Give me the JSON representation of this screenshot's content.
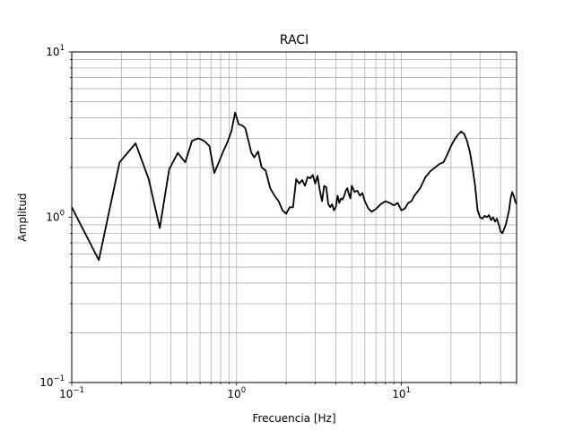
{
  "chart_data": {
    "type": "line",
    "title": "RACI",
    "xlabel": "Frecuencia [Hz]",
    "ylabel": "Amplitud",
    "xscale": "log",
    "yscale": "log",
    "xlim": [
      0.1,
      50
    ],
    "ylim": [
      0.1,
      10
    ],
    "grid": "major+minor",
    "line_color": "#000000",
    "grid_color": "#b0b0b0",
    "x_ticks": [
      {
        "base": "10",
        "exp": "−1",
        "value": 0.1
      },
      {
        "base": "10",
        "exp": "0",
        "value": 1
      },
      {
        "base": "10",
        "exp": "1",
        "value": 10
      }
    ],
    "y_ticks": [
      {
        "base": "10",
        "exp": "−1",
        "value": 0.1
      },
      {
        "base": "10",
        "exp": "0",
        "value": 1
      },
      {
        "base": "10",
        "exp": "1",
        "value": 10
      }
    ],
    "series": [
      {
        "x": [
          0.1,
          0.146,
          0.195,
          0.244,
          0.293,
          0.342,
          0.39,
          0.44,
          0.488,
          0.537,
          0.586,
          0.635,
          0.684,
          0.733,
          0.78,
          0.83,
          0.88,
          0.93,
          0.98,
          1.03,
          1.08,
          1.13,
          1.18,
          1.23,
          1.28,
          1.35,
          1.42,
          1.5,
          1.6,
          1.7,
          1.8,
          1.9,
          2.0,
          2.1,
          2.2,
          2.3,
          2.4,
          2.5,
          2.6,
          2.7,
          2.8,
          2.9,
          3.0,
          3.1,
          3.2,
          3.3,
          3.4,
          3.5,
          3.6,
          3.7,
          3.8,
          3.9,
          4.0,
          4.1,
          4.2,
          4.3,
          4.4,
          4.5,
          4.6,
          4.7,
          4.8,
          4.9,
          5.0,
          5.2,
          5.4,
          5.6,
          5.8,
          6.0,
          6.3,
          6.6,
          7.0,
          7.5,
          8.0,
          8.5,
          9.0,
          9.5,
          10.0,
          10.5,
          11.0,
          11.5,
          12.0,
          13.0,
          14.0,
          15.0,
          16.0,
          17.0,
          18.0,
          19.0,
          20.0,
          21.0,
          22.0,
          23.0,
          24.0,
          25.0,
          26.0,
          27.0,
          28.0,
          29.0,
          30.0,
          31.0,
          32.0,
          33.0,
          34.0,
          35.0,
          36.0,
          37.0,
          38.0,
          39.0,
          40.0,
          41.0,
          42.0,
          43.0,
          44.0,
          45.0,
          46.0,
          47.0,
          48.0,
          49.0,
          50.0
        ],
        "y": [
          1.15,
          0.55,
          2.15,
          2.8,
          1.7,
          0.86,
          1.95,
          2.45,
          2.15,
          2.9,
          3.0,
          2.9,
          2.7,
          1.85,
          2.15,
          2.5,
          2.85,
          3.3,
          4.3,
          3.65,
          3.6,
          3.45,
          2.9,
          2.45,
          2.3,
          2.5,
          2.0,
          1.92,
          1.5,
          1.35,
          1.25,
          1.1,
          1.05,
          1.15,
          1.15,
          1.7,
          1.6,
          1.68,
          1.55,
          1.75,
          1.72,
          1.8,
          1.6,
          1.78,
          1.45,
          1.25,
          1.55,
          1.52,
          1.2,
          1.15,
          1.2,
          1.1,
          1.15,
          1.35,
          1.22,
          1.3,
          1.28,
          1.35,
          1.45,
          1.5,
          1.38,
          1.3,
          1.55,
          1.42,
          1.45,
          1.35,
          1.4,
          1.25,
          1.13,
          1.08,
          1.12,
          1.2,
          1.25,
          1.22,
          1.18,
          1.22,
          1.1,
          1.13,
          1.22,
          1.25,
          1.35,
          1.5,
          1.75,
          1.9,
          2.0,
          2.1,
          2.15,
          2.4,
          2.7,
          2.95,
          3.15,
          3.3,
          3.2,
          2.9,
          2.5,
          2.0,
          1.55,
          1.1,
          1.0,
          0.98,
          1.02,
          1.0,
          1.03,
          0.96,
          1.0,
          0.94,
          0.98,
          0.9,
          0.82,
          0.8,
          0.85,
          0.9,
          1.0,
          1.1,
          1.3,
          1.42,
          1.35,
          1.25,
          1.2
        ]
      }
    ]
  }
}
